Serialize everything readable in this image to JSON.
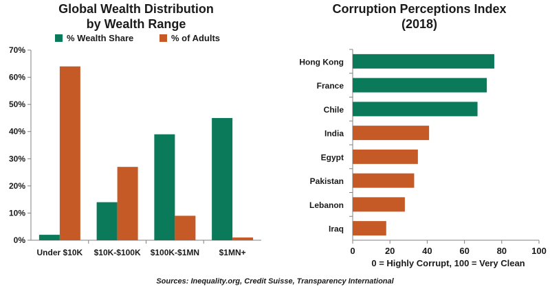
{
  "colors": {
    "green": "#0b7a5a",
    "orange": "#c55a27",
    "axis": "#7f7f7f",
    "grid": "#d0d0d0"
  },
  "source": "Sources: Inequality.org, Credit Suisse, Transparency International",
  "chart_data": [
    {
      "type": "bar",
      "title_line1": "Global Wealth Distribution",
      "title_line2": "by Wealth Range",
      "categories": [
        "Under $10K",
        "$10K-$100K",
        "$100K-$1MN",
        "$1MN+"
      ],
      "series": [
        {
          "name": "% Wealth Share",
          "color": "#0b7a5a",
          "values": [
            2,
            14,
            39,
            45
          ]
        },
        {
          "name": "% of Adults",
          "color": "#c55a27",
          "values": [
            64,
            27,
            9,
            1
          ]
        }
      ],
      "ylim": [
        0,
        70
      ],
      "yticks": [
        0,
        10,
        20,
        30,
        40,
        50,
        60,
        70
      ],
      "ytick_labels": [
        "0%",
        "10%",
        "20%",
        "30%",
        "40%",
        "50%",
        "60%",
        "70%"
      ],
      "legend_position": "top",
      "grid": false
    },
    {
      "type": "bar",
      "orientation": "horizontal",
      "title_line1": "Corruption Perceptions Index",
      "title_line2": "(2018)",
      "categories": [
        "Hong Kong",
        "France",
        "Chile",
        "India",
        "Egypt",
        "Pakistan",
        "Lebanon",
        "Iraq"
      ],
      "values": [
        76,
        72,
        67,
        41,
        35,
        33,
        28,
        18
      ],
      "colors": [
        "#0b7a5a",
        "#0b7a5a",
        "#0b7a5a",
        "#c55a27",
        "#c55a27",
        "#c55a27",
        "#c55a27",
        "#c55a27"
      ],
      "xlim": [
        0,
        100
      ],
      "xticks": [
        0,
        20,
        40,
        60,
        80,
        100
      ],
      "xlabel": "0 = Highly Corrupt, 100 = Very Clean",
      "grid": false
    }
  ]
}
